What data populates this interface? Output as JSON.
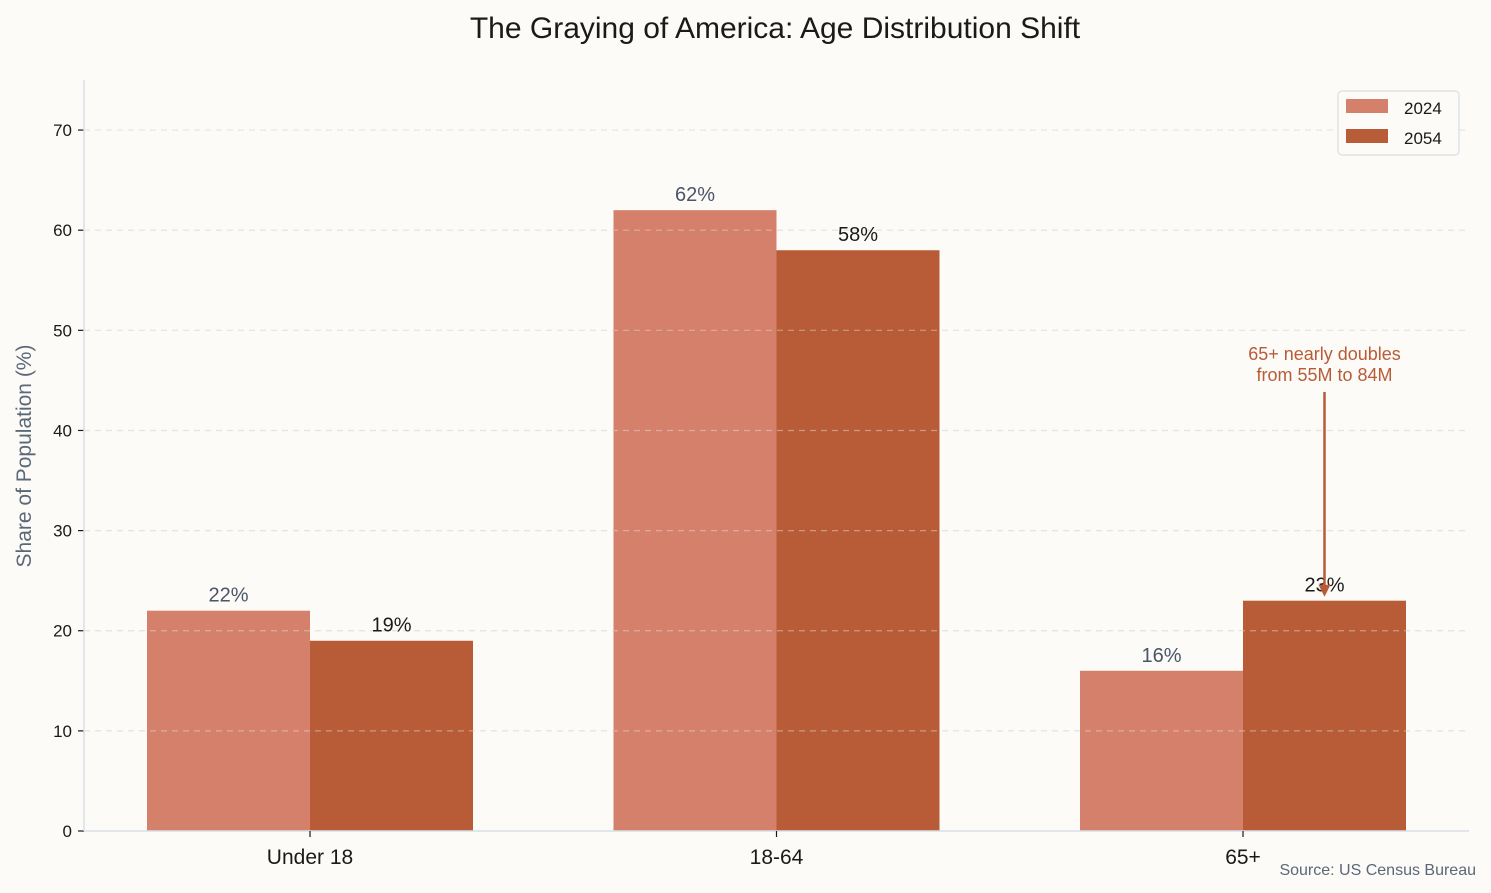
{
  "chart_data": {
    "type": "bar",
    "title": "The Graying of America: Age Distribution Shift",
    "xlabel": "",
    "ylabel": "Share of Population (%)",
    "ylim": [
      0,
      75
    ],
    "yticks": [
      0,
      10,
      20,
      30,
      40,
      50,
      60,
      70
    ],
    "grid": true,
    "legend_position": "top-right",
    "categories": [
      "Under 18",
      "18-64",
      "65+"
    ],
    "series": [
      {
        "name": "2024",
        "values": [
          22,
          62,
          16
        ],
        "labels": [
          "22%",
          "62%",
          "16%"
        ],
        "color": "#d4806a",
        "label_color": "#4a5568"
      },
      {
        "name": "2054",
        "values": [
          19,
          58,
          23
        ],
        "labels": [
          "19%",
          "58%",
          "23%"
        ],
        "color": "#b85c38",
        "label_color": "#1a1a1a"
      }
    ],
    "annotation": {
      "text_lines": [
        "65+ nearly doubles",
        "from 55M to 84M"
      ],
      "color": "#b85c38",
      "target_category": "65+",
      "target_series": "2054",
      "target_value": 23,
      "text_value": 44
    },
    "source": "Source: US Census Bureau"
  }
}
